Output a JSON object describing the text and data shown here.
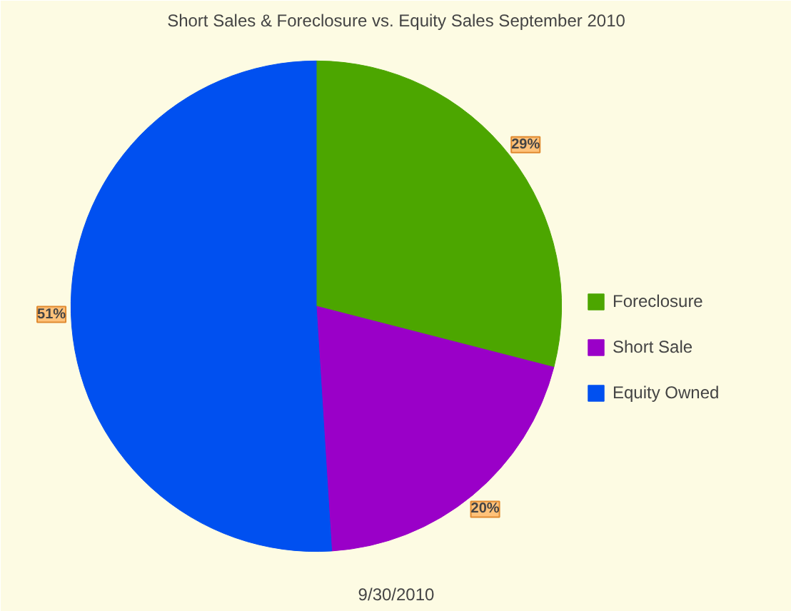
{
  "chart_data": {
    "type": "pie",
    "title": "Short Sales & Foreclosure vs. Equity Sales September 2010",
    "categories": [
      "Foreclosure",
      "Short Sale",
      "Equity Owned"
    ],
    "values": [
      29,
      20,
      51
    ],
    "colors": [
      "#4ca600",
      "#9a00c8",
      "#0050f0"
    ],
    "value_labels": [
      "29%",
      "20%",
      "51%"
    ],
    "legend": "right",
    "annotations": [
      "9/30/2010"
    ]
  }
}
